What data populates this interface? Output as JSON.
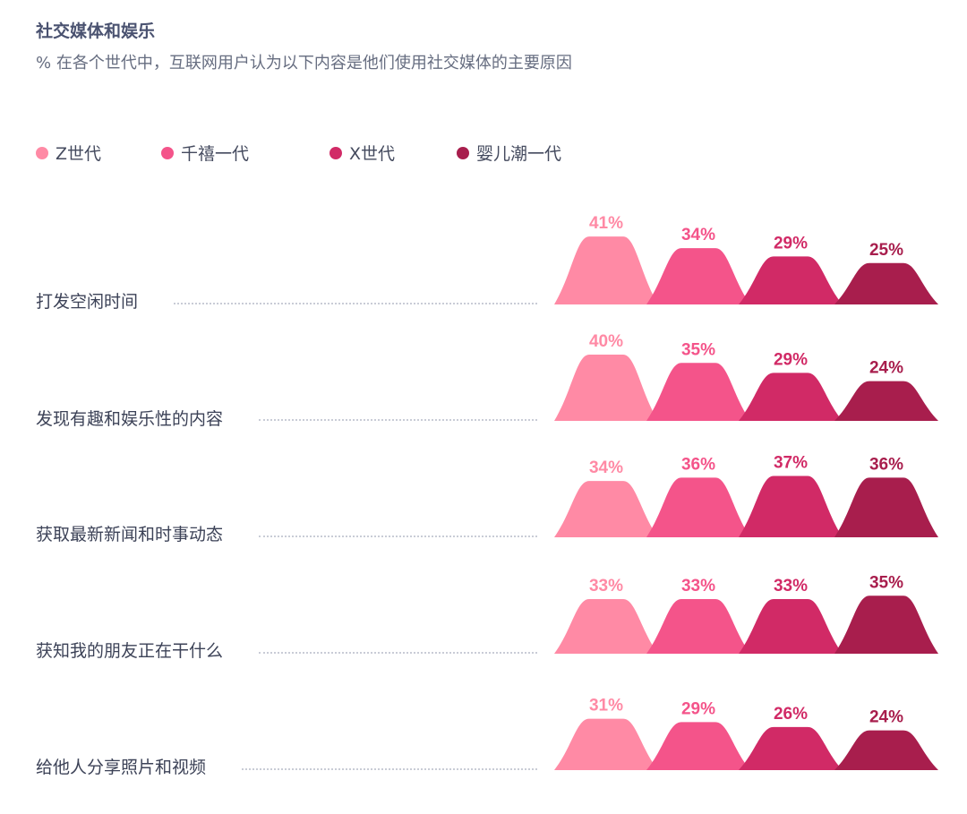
{
  "header": {
    "title": "社交媒体和娱乐",
    "subtitle": "% 在各个世代中，互联网用户认为以下内容是他们使用社交媒体的主要原因"
  },
  "colors": {
    "gen_z": "#ff8aa5",
    "millennials": "#f4548a",
    "gen_x": "#d12a66",
    "boomers": "#a81e4d"
  },
  "chart_data": {
    "type": "bar",
    "title": "社交媒体和娱乐",
    "subtitle": "% 在各个世代中，互联网用户认为以下内容是他们使用社交媒体的主要原因",
    "unit": "%",
    "legend_position": "top-left",
    "ylim": [
      0,
      45
    ],
    "categories": [
      "打发空闲时间",
      "发现有趣和娱乐性的内容",
      "获取最新新闻和时事动态",
      "获知我的朋友正在干什么",
      "给他人分享照片和视频"
    ],
    "series": [
      {
        "name": "Z世代",
        "color": "#ff8aa5",
        "values": [
          41,
          40,
          34,
          33,
          31
        ]
      },
      {
        "name": "千禧一代",
        "color": "#f4548a",
        "values": [
          34,
          35,
          36,
          33,
          29
        ]
      },
      {
        "name": "X世代",
        "color": "#d12a66",
        "values": [
          29,
          29,
          37,
          33,
          26
        ]
      },
      {
        "name": "婴儿潮一代",
        "color": "#a81e4d",
        "values": [
          25,
          24,
          36,
          35,
          24
        ]
      }
    ]
  }
}
